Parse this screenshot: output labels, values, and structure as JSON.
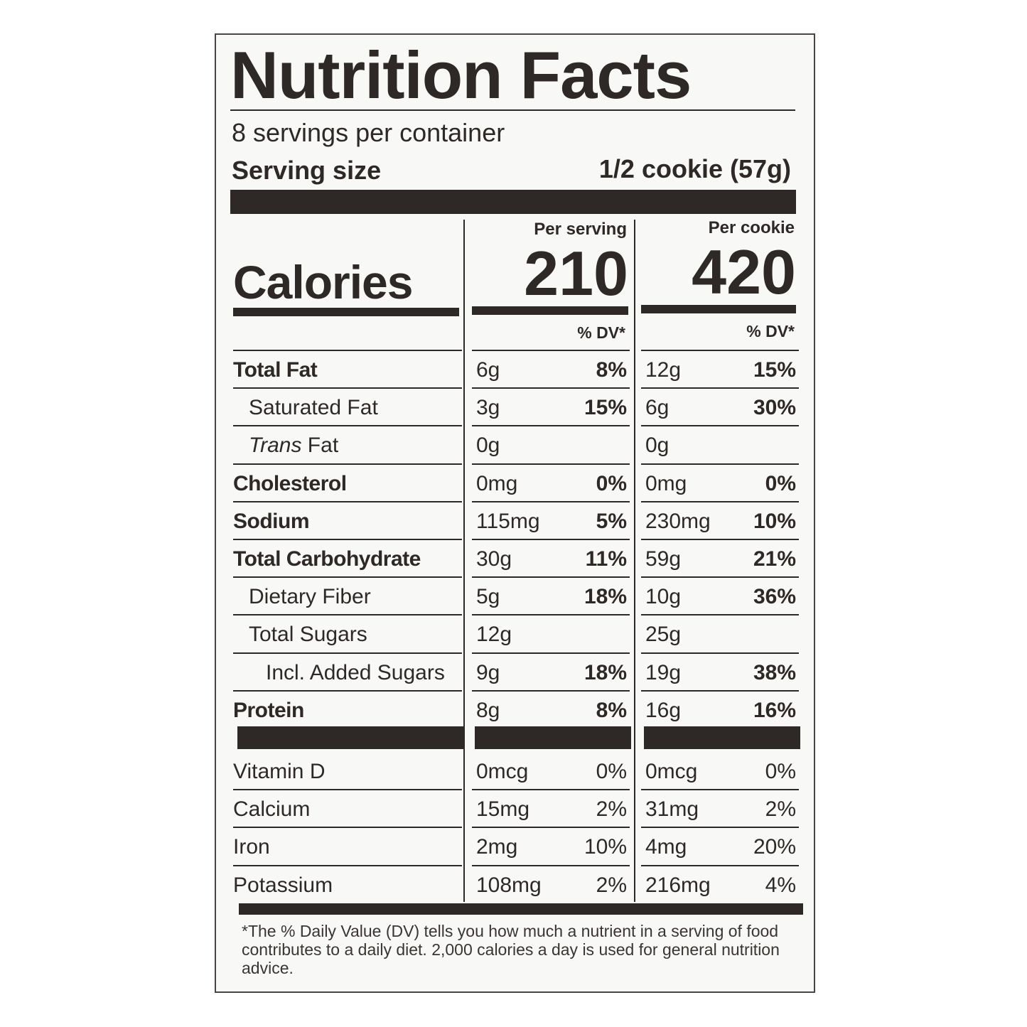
{
  "title": "Nutrition Facts",
  "servings_per_container": "8 servings per container",
  "serving_size_label": "Serving size",
  "serving_size_value": "1/2 cookie (57g)",
  "calories_label": "Calories",
  "columns": [
    {
      "header": "Per serving",
      "calories": "210",
      "dv_header": "% DV*"
    },
    {
      "header": "Per cookie",
      "calories": "420",
      "dv_header": "% DV*"
    }
  ],
  "nutrients": [
    {
      "name": "Total Fat",
      "bold": true,
      "indent": 0,
      "per_serving": {
        "amount": "6g",
        "dv": "8%"
      },
      "per_cookie": {
        "amount": "12g",
        "dv": "15%"
      }
    },
    {
      "name": "Saturated Fat",
      "bold": false,
      "indent": 1,
      "per_serving": {
        "amount": "3g",
        "dv": "15%"
      },
      "per_cookie": {
        "amount": "6g",
        "dv": "30%"
      }
    },
    {
      "name_italic": "Trans",
      "name": " Fat",
      "bold": false,
      "indent": 1,
      "per_serving": {
        "amount": "0g",
        "dv": ""
      },
      "per_cookie": {
        "amount": "0g",
        "dv": ""
      }
    },
    {
      "name": "Cholesterol",
      "bold": true,
      "indent": 0,
      "per_serving": {
        "amount": "0mg",
        "dv": "0%"
      },
      "per_cookie": {
        "amount": "0mg",
        "dv": "0%"
      }
    },
    {
      "name": "Sodium",
      "bold": true,
      "indent": 0,
      "per_serving": {
        "amount": "115mg",
        "dv": "5%"
      },
      "per_cookie": {
        "amount": "230mg",
        "dv": "10%"
      }
    },
    {
      "name": "Total Carbohydrate",
      "bold": true,
      "indent": 0,
      "per_serving": {
        "amount": "30g",
        "dv": "11%"
      },
      "per_cookie": {
        "amount": "59g",
        "dv": "21%"
      }
    },
    {
      "name": "Dietary Fiber",
      "bold": false,
      "indent": 1,
      "per_serving": {
        "amount": "5g",
        "dv": "18%"
      },
      "per_cookie": {
        "amount": "10g",
        "dv": "36%"
      }
    },
    {
      "name": "Total Sugars",
      "bold": false,
      "indent": 1,
      "per_serving": {
        "amount": "12g",
        "dv": ""
      },
      "per_cookie": {
        "amount": "25g",
        "dv": ""
      }
    },
    {
      "name": "Incl. Added Sugars",
      "bold": false,
      "indent": 2,
      "per_serving": {
        "amount": "9g",
        "dv": "18%"
      },
      "per_cookie": {
        "amount": "19g",
        "dv": "38%"
      }
    },
    {
      "name": "Protein",
      "bold": true,
      "indent": 0,
      "per_serving": {
        "amount": "8g",
        "dv": "8%"
      },
      "per_cookie": {
        "amount": "16g",
        "dv": "16%"
      }
    }
  ],
  "vitamins": [
    {
      "name": "Vitamin D",
      "per_serving": {
        "amount": "0mcg",
        "dv": "0%"
      },
      "per_cookie": {
        "amount": "0mcg",
        "dv": "0%"
      }
    },
    {
      "name": "Calcium",
      "per_serving": {
        "amount": "15mg",
        "dv": "2%"
      },
      "per_cookie": {
        "amount": "31mg",
        "dv": "2%"
      }
    },
    {
      "name": "Iron",
      "per_serving": {
        "amount": "2mg",
        "dv": "10%"
      },
      "per_cookie": {
        "amount": "4mg",
        "dv": "20%"
      }
    },
    {
      "name": "Potassium",
      "per_serving": {
        "amount": "108mg",
        "dv": "2%"
      },
      "per_cookie": {
        "amount": "216mg",
        "dv": "4%"
      }
    }
  ],
  "footnote": "*The % Daily Value (DV) tells you how much a nutrient in a serving of food contributes to a daily diet. 2,000 calories a day is used for general nutrition advice."
}
